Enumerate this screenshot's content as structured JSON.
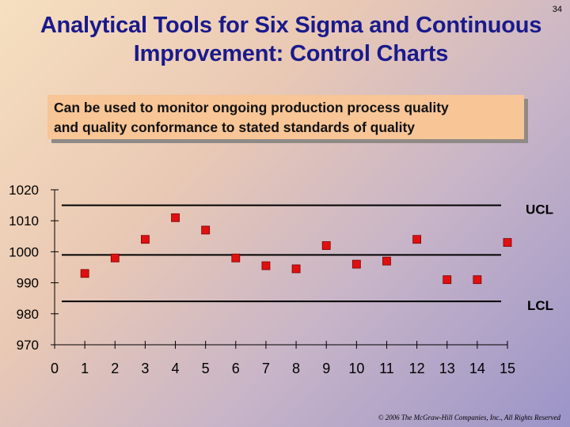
{
  "page_number": "34",
  "title_lines": [
    "Analytical Tools for Six Sigma and Continuous",
    "Improvement: Control Charts"
  ],
  "callout_lines": [
    "Can be used to monitor ongoing production process quality",
    "and quality conformance to stated standards of quality"
  ],
  "footer": "© 2006 The McGraw-Hill Companies, Inc., All Rights Reserved",
  "chart_data": {
    "type": "scatter",
    "x": [
      1,
      2,
      3,
      4,
      5,
      6,
      7,
      8,
      9,
      10,
      11,
      12,
      13,
      14,
      15
    ],
    "y": [
      993,
      998,
      1004,
      1011,
      1007,
      998,
      995.5,
      994.5,
      1002,
      996,
      997,
      1004,
      991,
      991,
      1003
    ],
    "xlim": [
      0,
      15
    ],
    "ylim": [
      970,
      1020
    ],
    "xticks": [
      "0",
      "1",
      "2",
      "3",
      "4",
      "5",
      "6",
      "7",
      "8",
      "9",
      "10",
      "11",
      "12",
      "13",
      "14",
      "15"
    ],
    "yticks": [
      "970",
      "980",
      "990",
      "1000",
      "1010",
      "1020"
    ],
    "lines": [
      {
        "label": "UCL",
        "y": 1015
      },
      {
        "label": "",
        "y": 999
      },
      {
        "label": "LCL",
        "y": 984
      }
    ],
    "colors": {
      "marker": "#e01010",
      "line": "#000000"
    }
  }
}
